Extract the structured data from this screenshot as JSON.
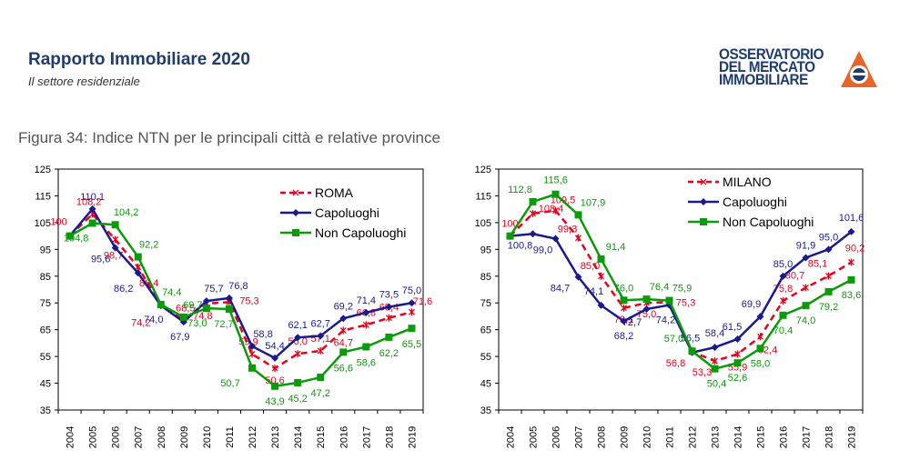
{
  "header": {
    "title": "Rapporto Immobiliare 2020",
    "subtitle": "Il settore residenziale"
  },
  "logo": {
    "line1": "OSSERVATORIO",
    "line2": "DEL MERCATO",
    "line3": "IMMOBILIARE"
  },
  "figure": {
    "caption": "Figura 34: Indice NTN per le principali città e relative province"
  },
  "colors": {
    "city": "#e8001c",
    "capoluoghi": "#1a1a8c",
    "non_capoluoghi": "#0a9a0a"
  },
  "chart_data": [
    {
      "type": "line",
      "years": [
        "2004",
        "2005",
        "2006",
        "2007",
        "2008",
        "2009",
        "2010",
        "2011",
        "2012",
        "2013",
        "2014",
        "2015",
        "2016",
        "2017",
        "2018",
        "2019"
      ],
      "ylim": [
        35,
        125
      ],
      "yticks": [
        "35",
        "45",
        "55",
        "65",
        "75",
        "85",
        "95",
        "105",
        "115",
        "125"
      ],
      "legend_position": "top-right",
      "series": [
        {
          "name": "ROMA",
          "key": "city",
          "values": [
            100,
            108.2,
            98.7,
            88.4,
            74.2,
            68.5,
            74.8,
            75.3,
            55.9,
            50.6,
            56.0,
            57.1,
            64.7,
            66.8,
            69.4,
            71.6
          ],
          "labels": [
            "100",
            "108,2",
            "98,7",
            "88,4",
            "74,2",
            "68,5",
            "74,8",
            "75,3",
            "55,9",
            "50,6",
            "56,0",
            "57,1",
            "64,7",
            "66,8",
            "69,4",
            "71,6"
          ]
        },
        {
          "name": "Capoluoghi",
          "key": "capoluoghi",
          "values": [
            100,
            110.1,
            95.6,
            86.2,
            74.0,
            67.9,
            75.7,
            76.8,
            58.8,
            54.4,
            62.1,
            62.7,
            69.2,
            71.4,
            73.5,
            75.0
          ],
          "labels": [
            "",
            "110,1",
            "95,6",
            "86,2",
            "74,0",
            "67,9",
            "75,7",
            "76,8",
            "58,8",
            "54,4",
            "62,1",
            "62,7",
            "69,2",
            "71,4",
            "73,5",
            "75,0"
          ]
        },
        {
          "name": "Non Capoluoghi",
          "key": "non_capoluoghi",
          "values": [
            100,
            104.8,
            104.2,
            92.2,
            74.4,
            69.7,
            73.0,
            72.7,
            50.7,
            43.9,
            45.2,
            47.2,
            56.6,
            58.6,
            62.2,
            65.5
          ],
          "labels": [
            "",
            "104,8",
            "104,2",
            "92,2",
            "74,4",
            "69,7",
            "73,0",
            "72,7",
            "50,7",
            "43,9",
            "45,2",
            "47,2",
            "56,6",
            "58,6",
            "62,2",
            "65,5"
          ]
        }
      ]
    },
    {
      "type": "line",
      "years": [
        "2004",
        "2005",
        "2006",
        "2007",
        "2008",
        "2009",
        "2010",
        "2011",
        "2012",
        "2013",
        "2014",
        "2015",
        "2016",
        "2017",
        "2018",
        "2019"
      ],
      "ylim": [
        35,
        125
      ],
      "yticks": [
        "35",
        "45",
        "55",
        "65",
        "75",
        "85",
        "95",
        "105",
        "115",
        "125"
      ],
      "legend_position": "top-right",
      "series": [
        {
          "name": "MILANO",
          "key": "city",
          "values": [
            100,
            108.4,
            109.5,
            99.3,
            85.0,
            73.1,
            75.0,
            75.3,
            56.8,
            53.3,
            55.9,
            62.4,
            75.8,
            80.7,
            85.1,
            90.2
          ],
          "labels": [
            "100",
            "108,4",
            "109,5",
            "99,3",
            "85,0",
            "73,1",
            "75,0",
            "75,3",
            "56,8",
            "53,3",
            "55,9",
            "62,4",
            "75,8",
            "80,7",
            "85,1",
            "90,2"
          ]
        },
        {
          "name": "Capoluoghi",
          "key": "capoluoghi",
          "values": [
            100,
            100.8,
            99.0,
            84.7,
            74.1,
            68.2,
            72.7,
            74.2,
            56.5,
            58.4,
            61.5,
            69.9,
            85.0,
            91.9,
            95.0,
            101.6
          ],
          "labels": [
            "",
            "100,8",
            "99,0",
            "84,7",
            "74,1",
            "68,2",
            "72,7",
            "74,2",
            "56,5",
            "58,4",
            "61,5",
            "69,9",
            "85,0",
            "91,9",
            "95,0",
            "101,6"
          ]
        },
        {
          "name": "Non Capoluoghi",
          "key": "non_capoluoghi",
          "values": [
            100,
            112.8,
            115.6,
            107.9,
            91.4,
            76.0,
            76.4,
            75.9,
            57.0,
            50.4,
            52.6,
            58.0,
            70.4,
            74.0,
            79.2,
            83.6
          ],
          "labels": [
            "",
            "112,8",
            "115,6",
            "107,9",
            "91,4",
            "76,0",
            "76,4",
            "75,9",
            "57,0",
            "50,4",
            "52,6",
            "58,0",
            "70,4",
            "74,0",
            "79,2",
            "83,6"
          ]
        }
      ]
    }
  ]
}
